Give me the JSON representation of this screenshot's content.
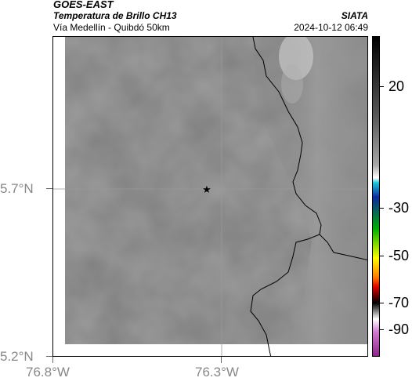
{
  "header": {
    "satellite": "GOES-EAST",
    "product": "Temperatura de Brillo CH13",
    "region": "Vía Medellín - Quibdó 50km",
    "organization": "SIATA",
    "timestamp": "2024-10-12 06:49"
  },
  "axes": {
    "lat_labels": [
      "5.7°N",
      "5.2°N"
    ],
    "lon_labels": [
      "76.8°W",
      "76.3°W"
    ]
  },
  "colorbar": {
    "labels": [
      "20",
      "-30",
      "-50",
      "-70",
      "-90"
    ],
    "colors": [
      "#000000",
      "#3a3a3a",
      "#7a7a7a",
      "#bdbdbd",
      "#ffffff",
      "#1ec7d6",
      "#0d2a9e",
      "#00b000",
      "#ffff00",
      "#ff7a00",
      "#e00000",
      "#000000",
      "#ffffff",
      "#d07ad0",
      "#8a1f8a"
    ]
  },
  "map": {
    "marker_icon": "star-icon",
    "background_color": "#7d7d7d",
    "border_color": "#000000"
  }
}
